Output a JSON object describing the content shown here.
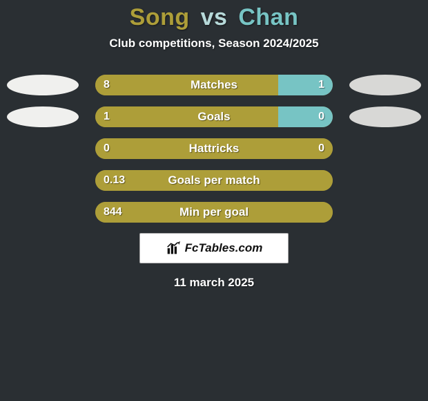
{
  "background_color": "#2a2f33",
  "title": {
    "player1": "Song",
    "vs": "vs",
    "player2": "Chan",
    "player1_color": "#ad9e39",
    "vs_color": "#b6d9d9",
    "player2_color": "#77c4c4"
  },
  "subtitle": "Club competitions, Season 2024/2025",
  "left_oval_color": "#f0f0ee",
  "right_oval_color": "#d8d8d6",
  "accent_left_color": "#ad9e39",
  "accent_right_color": "#77c4c4",
  "rows": [
    {
      "label": "Matches",
      "left_value": "8",
      "right_value": "1",
      "left_pct": 77,
      "right_pct": 23,
      "show_ovals": true
    },
    {
      "label": "Goals",
      "left_value": "1",
      "right_value": "0",
      "left_pct": 77,
      "right_pct": 23,
      "show_ovals": true
    },
    {
      "label": "Hattricks",
      "left_value": "0",
      "right_value": "0",
      "left_pct": 100,
      "right_pct": 0,
      "show_ovals": false
    },
    {
      "label": "Goals per match",
      "left_value": "0.13",
      "right_value": "",
      "left_pct": 100,
      "right_pct": 0,
      "show_ovals": false
    },
    {
      "label": "Min per goal",
      "left_value": "844",
      "right_value": "",
      "left_pct": 100,
      "right_pct": 0,
      "show_ovals": false
    }
  ],
  "brand": "FcTables.com",
  "footer_date": "11 march 2025"
}
